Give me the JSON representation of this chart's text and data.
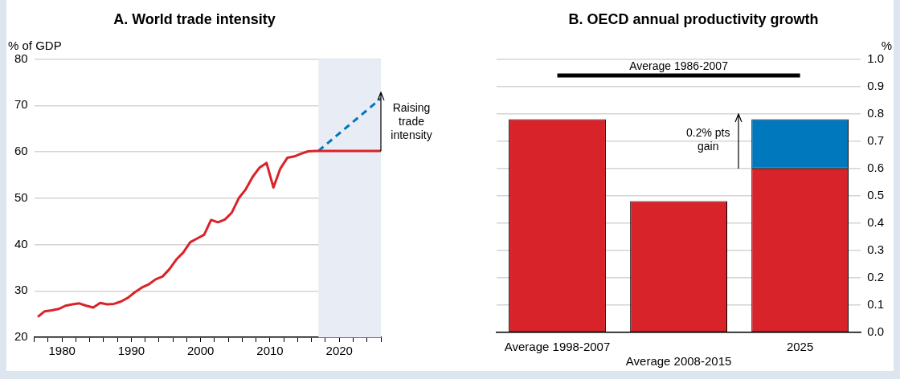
{
  "chart_data": [
    {
      "type": "line",
      "title": "A. World trade intensity",
      "ylabel": "% of GDP",
      "x": [
        1976.5,
        1977.5,
        1978.5,
        1979.5,
        1980.5,
        1981.5,
        1982.5,
        1983.5,
        1984.5,
        1985.5,
        1986.5,
        1987.5,
        1988.5,
        1989.5,
        1990.5,
        1991.5,
        1992.5,
        1993.5,
        1994.5,
        1995.5,
        1996.5,
        1997.5,
        1998.5,
        1999.5,
        2000.5,
        2001.5,
        2002.5,
        2003.5,
        2004.5,
        2005.5,
        2006.5,
        2007.5,
        2008.5,
        2009.5,
        2010.5,
        2011.5,
        2012.5,
        2013.5,
        2014.5,
        2015.5,
        2016.5,
        2026
      ],
      "series": [
        {
          "color": "#d9232a",
          "line_style": "solid",
          "values": [
            24.4,
            25.6,
            25.8,
            26.1,
            26.8,
            27.1,
            27.3,
            26.8,
            26.4,
            27.4,
            27.1,
            27.2,
            27.7,
            28.5,
            29.7,
            30.7,
            31.4,
            32.5,
            33.1,
            34.7,
            36.8,
            38.3,
            40.5,
            41.3,
            42.1,
            45.3,
            44.8,
            45.4,
            46.9,
            50.0,
            51.9,
            54.6,
            56.6,
            57.6,
            52.3,
            56.4,
            58.7,
            59.0,
            59.6,
            60.1,
            60.2,
            60.2
          ]
        },
        {
          "color": "#0078be",
          "line_style": "dashed",
          "x": [
            2017,
            2026
          ],
          "values": [
            60.2,
            71.5
          ]
        }
      ],
      "xlim": [
        1976,
        2026
      ],
      "xticks": [
        {
          "value": 1976,
          "label": null
        },
        {
          "value": 1978,
          "label": null
        },
        1980,
        {
          "value": 1982,
          "label": null
        },
        {
          "value": 1984,
          "label": null
        },
        {
          "value": 1986,
          "label": null
        },
        {
          "value": 1988,
          "label": null
        },
        1990,
        {
          "value": 1992,
          "label": null
        },
        {
          "value": 1994,
          "label": null
        },
        {
          "value": 1996,
          "label": null
        },
        {
          "value": 1998,
          "label": null
        },
        2000,
        {
          "value": 2002,
          "label": null
        },
        {
          "value": 2004,
          "label": null
        },
        {
          "value": 2006,
          "label": null
        },
        {
          "value": 2008,
          "label": null
        },
        2010,
        {
          "value": 2012,
          "label": null
        },
        {
          "value": 2014,
          "label": null
        },
        {
          "value": 2016,
          "label": null
        },
        {
          "value": 2018,
          "label": null
        },
        2020,
        {
          "value": 2022,
          "label": null
        },
        {
          "value": 2024,
          "label": null
        },
        {
          "value": 2026,
          "label": null
        }
      ],
      "ylim": [
        20,
        80
      ],
      "yticks": [
        20,
        30,
        40,
        50,
        60,
        70,
        80
      ],
      "bands": [
        {
          "axis": "x",
          "from": 2017,
          "to": 2026,
          "color": "#e8ecf5"
        }
      ],
      "annotations": [
        "Raising trade intensity"
      ],
      "grid": "y",
      "marker": "none"
    },
    {
      "type": "bar",
      "title": "B. OECD annual productivity growth",
      "ylabel": "%",
      "categories": [
        "Average 1998-2007",
        "Average 2008-2015",
        "2025"
      ],
      "series": [
        {
          "color": "#d9232a",
          "values": [
            0.78,
            0.48,
            0.6
          ]
        },
        {
          "color": "#0078be",
          "values": [
            null,
            null,
            0.18
          ]
        }
      ],
      "stacked": true,
      "ylim": [
        0,
        1
      ],
      "yticks": [
        {
          "value": 0,
          "label": "0.0"
        },
        0.1,
        0.2,
        0.3,
        0.4,
        0.5,
        0.6,
        0.7,
        0.8,
        0.9,
        {
          "value": 1,
          "label": "1.0"
        }
      ],
      "ref_lines": [
        {
          "axis": "y",
          "value": 0.94,
          "label": "Average 1986-2007",
          "color": "#000000"
        }
      ],
      "annotations": [
        "0.2% pts gain"
      ],
      "grid": "y"
    }
  ]
}
